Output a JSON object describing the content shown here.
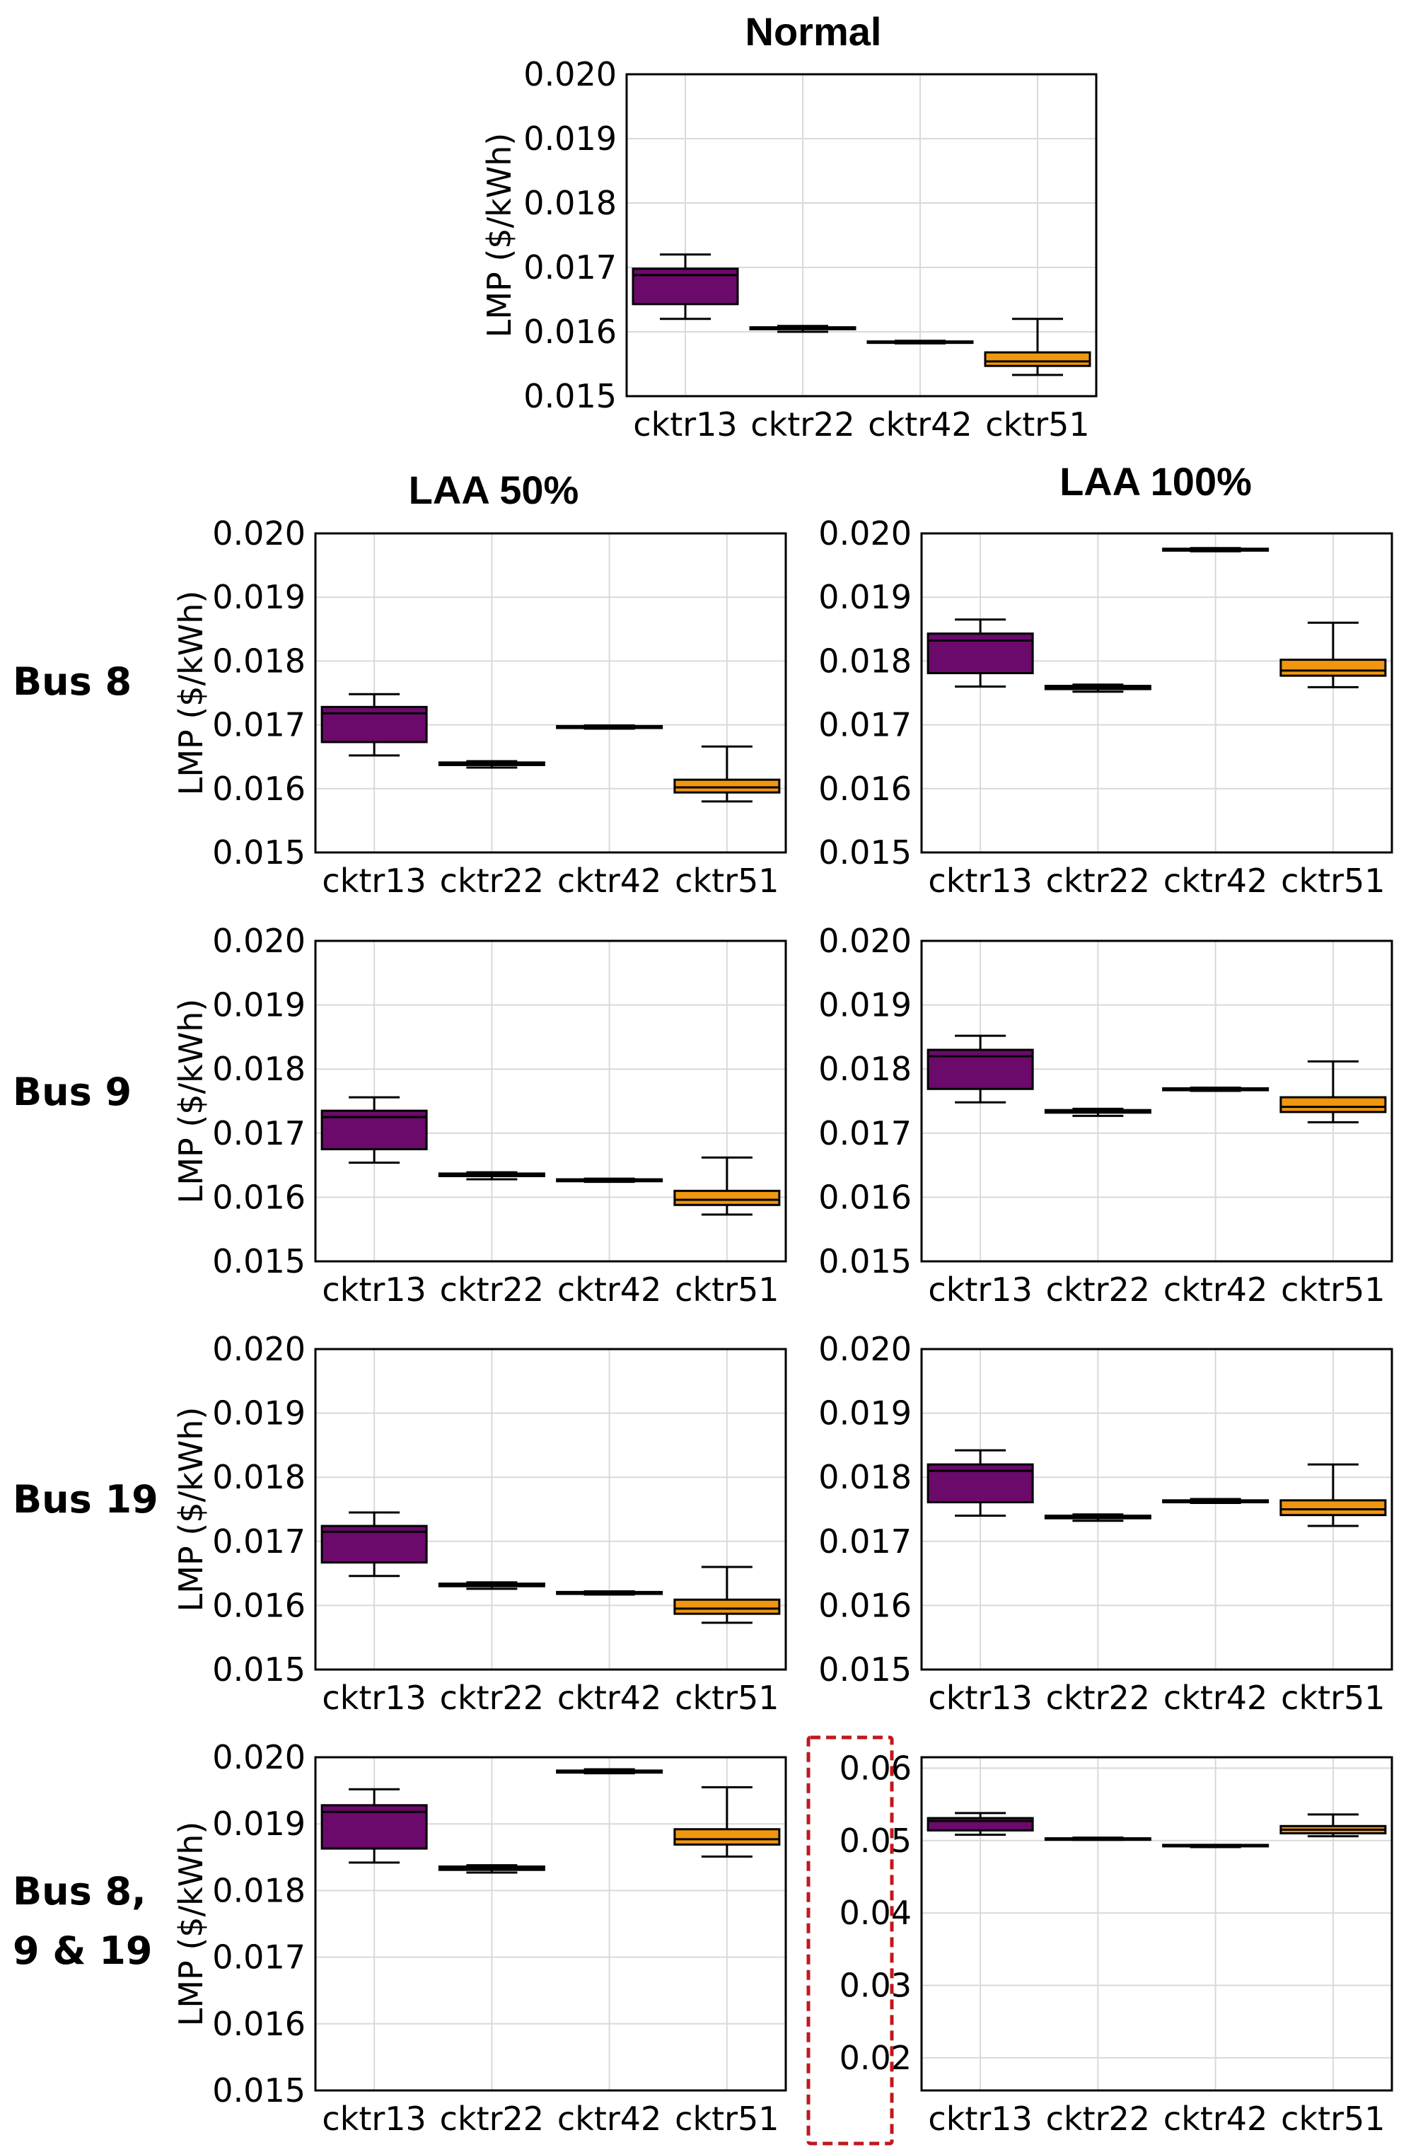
{
  "figure": {
    "titles": {
      "normal": "Normal",
      "laa50": "LAA 50%",
      "laa100": "LAA 100%"
    },
    "row_labels": [
      [
        "Bus 8"
      ],
      [
        "Bus 9"
      ],
      [
        "Bus 19"
      ],
      [
        "Bus 8,",
        "9 & 19"
      ]
    ],
    "colors": {
      "cktr13": "#6b0a6b",
      "cktr22": "#6b0a6b",
      "cktr42": "#f0960f",
      "cktr51": "#f0960f"
    }
  },
  "chart_data": [
    {
      "id": "normal",
      "type": "box",
      "title": "Normal",
      "ylabel": "LMP ($/kWh)",
      "categories": [
        "cktr13",
        "cktr22",
        "cktr42",
        "cktr51"
      ],
      "ylim": [
        0.015,
        0.02
      ],
      "yticks": [
        "0.015",
        "0.016",
        "0.017",
        "0.018",
        "0.019",
        "0.020"
      ],
      "boxes": [
        {
          "min": 0.0162,
          "q1": 0.01643,
          "median": 0.01688,
          "q3": 0.01698,
          "max": 0.0172
        },
        {
          "min": 0.016,
          "q1": 0.01604,
          "median": 0.01605,
          "q3": 0.01607,
          "max": 0.01609
        },
        {
          "min": 0.01582,
          "q1": 0.01583,
          "median": 0.01584,
          "q3": 0.01585,
          "max": 0.01586
        },
        {
          "min": 0.01533,
          "q1": 0.01547,
          "median": 0.01554,
          "q3": 0.01568,
          "max": 0.0162
        }
      ]
    },
    {
      "id": "laa50-bus8",
      "type": "box",
      "ylabel": "LMP ($/kWh)",
      "categories": [
        "cktr13",
        "cktr22",
        "cktr42",
        "cktr51"
      ],
      "ylim": [
        0.015,
        0.02
      ],
      "yticks": [
        "0.015",
        "0.016",
        "0.017",
        "0.018",
        "0.019",
        "0.020"
      ],
      "boxes": [
        {
          "min": 0.01652,
          "q1": 0.01673,
          "median": 0.01718,
          "q3": 0.01728,
          "max": 0.01748
        },
        {
          "min": 0.01633,
          "q1": 0.01637,
          "median": 0.01639,
          "q3": 0.01641,
          "max": 0.01643
        },
        {
          "min": 0.01694,
          "q1": 0.01695,
          "median": 0.01696,
          "q3": 0.01698,
          "max": 0.01699
        },
        {
          "min": 0.0158,
          "q1": 0.01594,
          "median": 0.01602,
          "q3": 0.01614,
          "max": 0.01666
        }
      ]
    },
    {
      "id": "laa100-bus8",
      "type": "box",
      "ylabel": "",
      "categories": [
        "cktr13",
        "cktr22",
        "cktr42",
        "cktr51"
      ],
      "ylim": [
        0.015,
        0.02
      ],
      "yticks": [
        "0.015",
        "0.016",
        "0.017",
        "0.018",
        "0.019",
        "0.020"
      ],
      "boxes": [
        {
          "min": 0.0176,
          "q1": 0.01781,
          "median": 0.01832,
          "q3": 0.01843,
          "max": 0.01865
        },
        {
          "min": 0.01752,
          "q1": 0.01756,
          "median": 0.01759,
          "q3": 0.01761,
          "max": 0.01763
        },
        {
          "min": 0.01972,
          "q1": 0.01973,
          "median": 0.01974,
          "q3": 0.01976,
          "max": 0.01977
        },
        {
          "min": 0.01759,
          "q1": 0.01777,
          "median": 0.01785,
          "q3": 0.01802,
          "max": 0.0186
        }
      ]
    },
    {
      "id": "laa50-bus9",
      "type": "box",
      "ylabel": "LMP ($/kWh)",
      "categories": [
        "cktr13",
        "cktr22",
        "cktr42",
        "cktr51"
      ],
      "ylim": [
        0.015,
        0.02
      ],
      "yticks": [
        "0.015",
        "0.016",
        "0.017",
        "0.018",
        "0.019",
        "0.020"
      ],
      "boxes": [
        {
          "min": 0.01654,
          "q1": 0.01675,
          "median": 0.01725,
          "q3": 0.01735,
          "max": 0.01756
        },
        {
          "min": 0.01628,
          "q1": 0.01633,
          "median": 0.01635,
          "q3": 0.01637,
          "max": 0.01639
        },
        {
          "min": 0.01624,
          "q1": 0.01625,
          "median": 0.01626,
          "q3": 0.01628,
          "max": 0.01629
        },
        {
          "min": 0.01573,
          "q1": 0.01588,
          "median": 0.01596,
          "q3": 0.0161,
          "max": 0.01662
        }
      ]
    },
    {
      "id": "laa100-bus9",
      "type": "box",
      "ylabel": "",
      "categories": [
        "cktr13",
        "cktr22",
        "cktr42",
        "cktr51"
      ],
      "ylim": [
        0.015,
        0.02
      ],
      "yticks": [
        "0.015",
        "0.016",
        "0.017",
        "0.018",
        "0.019",
        "0.020"
      ],
      "boxes": [
        {
          "min": 0.01748,
          "q1": 0.01769,
          "median": 0.0182,
          "q3": 0.0183,
          "max": 0.01852
        },
        {
          "min": 0.01727,
          "q1": 0.01732,
          "median": 0.01734,
          "q3": 0.01736,
          "max": 0.01738
        },
        {
          "min": 0.01766,
          "q1": 0.01767,
          "median": 0.01768,
          "q3": 0.0177,
          "max": 0.01771
        },
        {
          "min": 0.01717,
          "q1": 0.01733,
          "median": 0.01741,
          "q3": 0.01756,
          "max": 0.01812
        }
      ]
    },
    {
      "id": "laa50-bus19",
      "type": "box",
      "ylabel": "LMP ($/kWh)",
      "categories": [
        "cktr13",
        "cktr22",
        "cktr42",
        "cktr51"
      ],
      "ylim": [
        0.015,
        0.02
      ],
      "yticks": [
        "0.015",
        "0.016",
        "0.017",
        "0.018",
        "0.019",
        "0.020"
      ],
      "boxes": [
        {
          "min": 0.01646,
          "q1": 0.01667,
          "median": 0.01715,
          "q3": 0.01724,
          "max": 0.01745
        },
        {
          "min": 0.01626,
          "q1": 0.0163,
          "median": 0.01632,
          "q3": 0.01634,
          "max": 0.01636
        },
        {
          "min": 0.01617,
          "q1": 0.01618,
          "median": 0.01619,
          "q3": 0.01621,
          "max": 0.01622
        },
        {
          "min": 0.01573,
          "q1": 0.01587,
          "median": 0.01595,
          "q3": 0.01609,
          "max": 0.0166
        }
      ]
    },
    {
      "id": "laa100-bus19",
      "type": "box",
      "ylabel": "",
      "categories": [
        "cktr13",
        "cktr22",
        "cktr42",
        "cktr51"
      ],
      "ylim": [
        0.015,
        0.02
      ],
      "yticks": [
        "0.015",
        "0.016",
        "0.017",
        "0.018",
        "0.019",
        "0.020"
      ],
      "boxes": [
        {
          "min": 0.0174,
          "q1": 0.01761,
          "median": 0.0181,
          "q3": 0.0182,
          "max": 0.01842
        },
        {
          "min": 0.01732,
          "q1": 0.01736,
          "median": 0.01738,
          "q3": 0.0174,
          "max": 0.01742
        },
        {
          "min": 0.0176,
          "q1": 0.01761,
          "median": 0.01763,
          "q3": 0.01764,
          "max": 0.01766
        },
        {
          "min": 0.01724,
          "q1": 0.01741,
          "median": 0.0175,
          "q3": 0.01764,
          "max": 0.0182
        }
      ]
    },
    {
      "id": "laa50-bus8-9-19",
      "type": "box",
      "ylabel": "LMP ($/kWh)",
      "categories": [
        "cktr13",
        "cktr22",
        "cktr42",
        "cktr51"
      ],
      "ylim": [
        0.015,
        0.02
      ],
      "yticks": [
        "0.015",
        "0.016",
        "0.017",
        "0.018",
        "0.019",
        "0.020"
      ],
      "boxes": [
        {
          "min": 0.01842,
          "q1": 0.01863,
          "median": 0.01918,
          "q3": 0.01928,
          "max": 0.01952
        },
        {
          "min": 0.01827,
          "q1": 0.01831,
          "median": 0.01834,
          "q3": 0.01836,
          "max": 0.01838
        },
        {
          "min": 0.01976,
          "q1": 0.01977,
          "median": 0.01979,
          "q3": 0.0198,
          "max": 0.01982
        },
        {
          "min": 0.01851,
          "q1": 0.01869,
          "median": 0.01877,
          "q3": 0.01892,
          "max": 0.01955
        }
      ]
    },
    {
      "id": "laa100-bus8-9-19",
      "type": "box",
      "ylabel": "",
      "categories": [
        "cktr13",
        "cktr22",
        "cktr42",
        "cktr51"
      ],
      "ylim": [
        0.0155,
        0.0615
      ],
      "yticks": [
        "0.02",
        "0.03",
        "0.04",
        "0.05",
        "0.06"
      ],
      "highlight": "y-axis tick labels boxed with red dashed outline",
      "boxes": [
        {
          "min": 0.0508,
          "q1": 0.0514,
          "median": 0.0527,
          "q3": 0.0531,
          "max": 0.0538
        },
        {
          "min": 0.0501,
          "q1": 0.0502,
          "median": 0.0503,
          "q3": 0.0503,
          "max": 0.0504
        },
        {
          "min": 0.0491,
          "q1": 0.0492,
          "median": 0.0493,
          "q3": 0.0494,
          "max": 0.0494
        },
        {
          "min": 0.0506,
          "q1": 0.051,
          "median": 0.0515,
          "q3": 0.052,
          "max": 0.0536
        }
      ]
    }
  ]
}
